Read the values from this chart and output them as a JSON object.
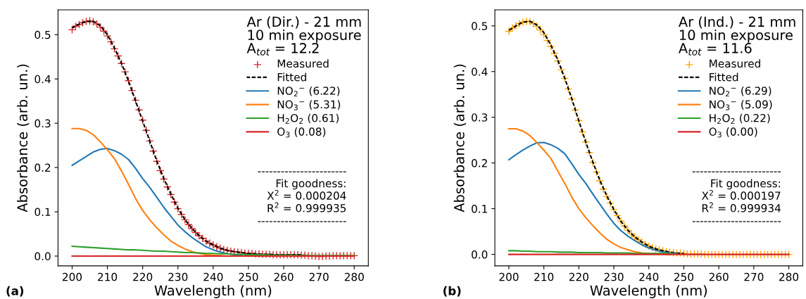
{
  "chart_data": [
    {
      "type": "line",
      "xlabel": "Wavelength (nm)",
      "ylabel": "Absorbance (arb. un.)",
      "legend_title": "Ar (Dir.) - 21 mm\n10 min exposure\nA$_{tot}$ = 12.2",
      "legend": "top right",
      "xlim": [
        196,
        284
      ],
      "xticks": [
        200,
        210,
        220,
        230,
        240,
        250,
        260,
        270,
        280
      ],
      "ylim": [
        -0.022,
        0.556
      ],
      "yticks": [
        {
          "value": 0,
          "label": "0.0"
        },
        {
          "value": 0.1,
          "label": "0.1"
        },
        {
          "value": 0.2,
          "label": "0.2"
        },
        {
          "value": 0.3,
          "label": "0.3"
        },
        {
          "value": 0.4,
          "label": "0.4"
        },
        {
          "value": 0.5,
          "label": "0.5"
        }
      ],
      "annotations": [
        "-----------------------\nFit goodness:\n  X$^{2}$ = 0.000204\n  R$^{2}$ = 0.999935\n-----------------------",
        "(a)"
      ],
      "x": [
        200,
        202,
        204,
        206,
        208,
        210,
        212,
        214,
        216,
        218,
        220,
        222,
        224,
        226,
        228,
        230,
        232,
        234,
        236,
        238,
        240,
        242,
        244,
        246,
        248,
        250,
        252,
        254,
        256,
        258,
        260,
        262,
        264,
        266,
        268,
        270,
        272,
        274,
        276,
        278,
        280
      ],
      "series": [
        {
          "name": "Measured",
          "type": "scatter",
          "marker": "cross",
          "color": "#d62728",
          "x": [
            200,
            201,
            202,
            203,
            204,
            205,
            206,
            207,
            208,
            209,
            210,
            211,
            212,
            213,
            214,
            215,
            216,
            217,
            218,
            219,
            220,
            221,
            222,
            223,
            224,
            225,
            226,
            227,
            228,
            229,
            230,
            231,
            232,
            233,
            234,
            235,
            236,
            237,
            238,
            239,
            240,
            241,
            242,
            243,
            244,
            245,
            246,
            247,
            248,
            249,
            250,
            251,
            252,
            253,
            254,
            255,
            256,
            257,
            258,
            259,
            260,
            261,
            262,
            263,
            264,
            265,
            266,
            267,
            268,
            269,
            270,
            271,
            272,
            273,
            274,
            275,
            276,
            277,
            278,
            279,
            280
          ],
          "values": [
            0.511,
            0.519,
            0.523,
            0.527,
            0.53,
            0.531,
            0.529,
            0.524,
            0.517,
            0.508,
            0.497,
            0.484,
            0.468,
            0.452,
            0.435,
            0.416,
            0.396,
            0.374,
            0.352,
            0.33,
            0.307,
            0.284,
            0.26,
            0.237,
            0.214,
            0.193,
            0.174,
            0.156,
            0.139,
            0.122,
            0.107,
            0.094,
            0.082,
            0.071,
            0.062,
            0.053,
            0.046,
            0.04,
            0.034,
            0.029,
            0.025,
            0.021,
            0.018,
            0.015,
            0.013,
            0.011,
            0.01,
            0.009,
            0.008,
            0.007,
            0.006,
            0.006,
            0.005,
            0.005,
            0.004,
            0.004,
            0.004,
            0.003,
            0.003,
            0.003,
            0.003,
            0.003,
            0.003,
            0.003,
            0.003,
            0.002,
            0.002,
            0.001,
            0.001,
            0.0,
            -0.001,
            -0.001,
            0.0,
            0.0,
            0.001,
            0.001,
            0.001,
            0.001,
            0.001,
            0.001,
            0.001
          ]
        },
        {
          "name": "Fitted",
          "line_style": "dashed",
          "color": "#000000",
          "values": [
            0.515,
            0.524,
            0.53,
            0.53,
            0.52,
            0.5,
            0.47,
            0.435,
            0.395,
            0.35,
            0.305,
            0.26,
            0.215,
            0.175,
            0.14,
            0.108,
            0.082,
            0.062,
            0.046,
            0.034,
            0.025,
            0.018,
            0.013,
            0.01,
            0.008,
            0.006,
            0.005,
            0.004,
            0.004,
            0.003,
            0.003,
            0.003,
            0.003,
            0.002,
            null,
            null,
            null,
            null,
            null,
            null,
            null
          ]
        },
        {
          "name": "NO$_{2}$$^{−}$ (6.22)",
          "color": "#1f77b4",
          "values": [
            0.205,
            0.215,
            0.225,
            0.235,
            0.241,
            0.243,
            0.238,
            0.23,
            0.218,
            0.198,
            0.175,
            0.155,
            0.133,
            0.11,
            0.09,
            0.07,
            0.055,
            0.042,
            0.031,
            0.021,
            0.014,
            0.009,
            0.005,
            0.003,
            0.002,
            null,
            null,
            null,
            null,
            null,
            null,
            null,
            null,
            null,
            null,
            null,
            null,
            null,
            null,
            null,
            null
          ]
        },
        {
          "name": "NO$_{3}$$^{−}$ (5.31)",
          "color": "#ff7f0e",
          "values": [
            0.288,
            0.288,
            0.284,
            0.274,
            0.258,
            0.24,
            0.22,
            0.192,
            0.162,
            0.13,
            0.103,
            0.082,
            0.064,
            0.048,
            0.034,
            0.024,
            0.016,
            0.01,
            0.006,
            0.003,
            0.002,
            0.001,
            0,
            0,
            null,
            null,
            null,
            null,
            null,
            null,
            null,
            null,
            null,
            null,
            null,
            null,
            null,
            null,
            null,
            null,
            null
          ]
        },
        {
          "name": "H$_{2}$O$_{2}$ (0.61)",
          "color": "#2ca02c",
          "values": [
            0.022,
            0.021,
            0.02,
            0.019,
            0.018,
            0.017,
            0.016,
            0.015,
            0.014,
            0.014,
            0.013,
            0.012,
            0.011,
            0.011,
            0.01,
            0.009,
            0.008,
            0.008,
            0.007,
            0.006,
            0.006,
            0.005,
            0.005,
            0.004,
            0.004,
            0.003,
            0.003,
            0.003,
            0.002,
            0.002,
            0.002,
            0.002,
            0.001,
            0.001,
            0.001,
            0.001,
            0.001,
            0.001,
            0.001,
            0.001,
            0.001
          ]
        },
        {
          "name": "O$_{3}$ (0.08)",
          "color": "#d62728",
          "values": [
            0,
            0,
            0,
            0,
            0,
            0,
            0,
            0,
            0,
            0,
            0,
            0,
            0,
            0,
            0,
            0,
            0,
            0,
            0,
            0,
            0,
            0,
            0,
            0,
            0,
            0,
            0,
            0,
            0,
            0,
            0,
            0,
            0,
            0,
            0,
            0,
            0,
            0,
            0,
            0,
            0
          ]
        }
      ]
    },
    {
      "type": "line",
      "xlabel": "Wavelength (nm)",
      "ylabel": "Absorbance (arb. un.)",
      "legend_title": "Ar (Ind.) - 21 mm\n10 min exposure\nA$_{tot}$ = 11.6",
      "legend": "top right",
      "xlim": [
        196,
        284
      ],
      "xticks": [
        200,
        210,
        220,
        230,
        240,
        250,
        260,
        270,
        280
      ],
      "ylim": [
        -0.025,
        0.535
      ],
      "yticks": [
        {
          "value": 0,
          "label": "0.0"
        },
        {
          "value": 0.1,
          "label": "0.1"
        },
        {
          "value": 0.2,
          "label": "0.2"
        },
        {
          "value": 0.3,
          "label": "0.3"
        },
        {
          "value": 0.4,
          "label": "0.4"
        },
        {
          "value": 0.5,
          "label": "0.5"
        }
      ],
      "annotations": [
        "-----------------------\nFit goodness:\n  X$^{2}$ = 0.000197\n  R$^{2}$ = 0.999934\n-----------------------",
        "(b)"
      ],
      "x": [
        200,
        202,
        204,
        206,
        208,
        210,
        212,
        214,
        216,
        218,
        220,
        222,
        224,
        226,
        228,
        230,
        232,
        234,
        236,
        238,
        240,
        242,
        244,
        246,
        248,
        250,
        252,
        254,
        256,
        258,
        260,
        262,
        264,
        266,
        268,
        270,
        272,
        274,
        276,
        278,
        280
      ],
      "series": [
        {
          "name": "Measured",
          "type": "scatter",
          "marker": "cross",
          "color": "#ffa500",
          "x": [
            200,
            201,
            202,
            203,
            204,
            205,
            206,
            207,
            208,
            209,
            210,
            211,
            212,
            213,
            214,
            215,
            216,
            217,
            218,
            219,
            220,
            221,
            222,
            223,
            224,
            225,
            226,
            227,
            228,
            229,
            230,
            231,
            232,
            233,
            234,
            235,
            236,
            237,
            238,
            239,
            240,
            241,
            242,
            243,
            244,
            245,
            246,
            247,
            248,
            249,
            250,
            251,
            252,
            253,
            254,
            255,
            256,
            257,
            258,
            259,
            260,
            261,
            262,
            263,
            264,
            265,
            266,
            267,
            268,
            269,
            270,
            271,
            272,
            273,
            274,
            275,
            276,
            277,
            278,
            279,
            280
          ],
          "values": [
            0.488,
            0.495,
            0.5,
            0.505,
            0.508,
            0.51,
            0.509,
            0.505,
            0.499,
            0.491,
            0.481,
            0.468,
            0.455,
            0.44,
            0.423,
            0.404,
            0.385,
            0.362,
            0.34,
            0.316,
            0.293,
            0.268,
            0.246,
            0.223,
            0.201,
            0.18,
            0.161,
            0.143,
            0.127,
            0.112,
            0.098,
            0.085,
            0.073,
            0.062,
            0.053,
            0.045,
            0.038,
            0.032,
            0.027,
            0.022,
            0.018,
            0.015,
            0.012,
            0.01,
            0.008,
            0.006,
            0.005,
            0.004,
            0.003,
            0.003,
            0.002,
            0.001,
            0.001,
            0.001,
            0.001,
            0.001,
            0,
            0,
            0,
            0,
            0,
            0,
            0,
            0,
            0,
            0,
            0,
            0,
            0,
            0,
            0,
            0,
            0,
            0,
            0,
            0,
            0,
            0,
            0,
            0,
            0
          ]
        },
        {
          "name": "Fitted",
          "line_style": "dashed",
          "color": "#000000",
          "values": [
            0.49,
            0.5,
            0.508,
            0.51,
            0.502,
            0.485,
            0.458,
            0.425,
            0.385,
            0.34,
            0.292,
            0.245,
            0.202,
            0.162,
            0.128,
            0.098,
            0.073,
            0.053,
            0.038,
            0.027,
            0.018,
            0.012,
            0.008,
            0.005,
            0.003,
            0.002,
            null,
            null,
            null,
            null,
            null,
            null,
            null,
            null,
            null,
            null,
            null,
            null,
            null,
            null,
            null
          ]
        },
        {
          "name": "NO$_{2}$$^{−}$ (6.29)",
          "color": "#1f77b4",
          "values": [
            0.207,
            0.218,
            0.228,
            0.237,
            0.244,
            0.245,
            0.24,
            0.232,
            0.22,
            0.198,
            0.175,
            0.155,
            0.132,
            0.11,
            0.088,
            0.068,
            0.052,
            0.04,
            0.03,
            0.021,
            0.014,
            0.009,
            0.005,
            0.003,
            0.002,
            null,
            null,
            null,
            null,
            null,
            null,
            null,
            null,
            null,
            null,
            null,
            null,
            null,
            null,
            null,
            null
          ]
        },
        {
          "name": "NO$_{3}$$^{−}$ (5.09)",
          "color": "#ff7f0e",
          "values": [
            0.275,
            0.275,
            0.27,
            0.26,
            0.245,
            0.228,
            0.21,
            0.182,
            0.155,
            0.125,
            0.1,
            0.08,
            0.063,
            0.047,
            0.033,
            0.023,
            0.015,
            0.01,
            0.006,
            0.003,
            0.002,
            0.001,
            0,
            0,
            null,
            null,
            null,
            null,
            null,
            null,
            null,
            null,
            null,
            null,
            null,
            null,
            null,
            null,
            null,
            null,
            null
          ]
        },
        {
          "name": "H$_{2}$O$_{2}$ (0.22)",
          "color": "#2ca02c",
          "values": [
            0.008,
            0.008,
            0.007,
            0.007,
            0.006,
            0.006,
            0.006,
            0.005,
            0.005,
            0.005,
            0.004,
            0.004,
            0.004,
            0.004,
            0.003,
            0.003,
            0.003,
            0.003,
            0.002,
            0.002,
            0.002,
            0.002,
            0.002,
            0.002,
            0.001,
            null,
            null,
            null,
            null,
            null,
            null,
            null,
            null,
            null,
            null,
            null,
            null,
            null,
            null,
            null,
            null
          ]
        },
        {
          "name": "O$_{3}$ (0.00)",
          "color": "#d62728",
          "values": [
            0,
            0,
            0,
            0,
            0,
            0,
            0,
            0,
            0,
            0,
            0,
            0,
            0,
            0,
            0,
            0,
            0,
            0,
            0,
            0,
            0,
            0,
            0,
            0,
            0,
            0,
            0,
            0,
            0,
            0,
            0,
            0,
            0,
            0,
            0,
            0,
            0,
            0,
            0,
            0,
            0
          ]
        }
      ]
    }
  ]
}
